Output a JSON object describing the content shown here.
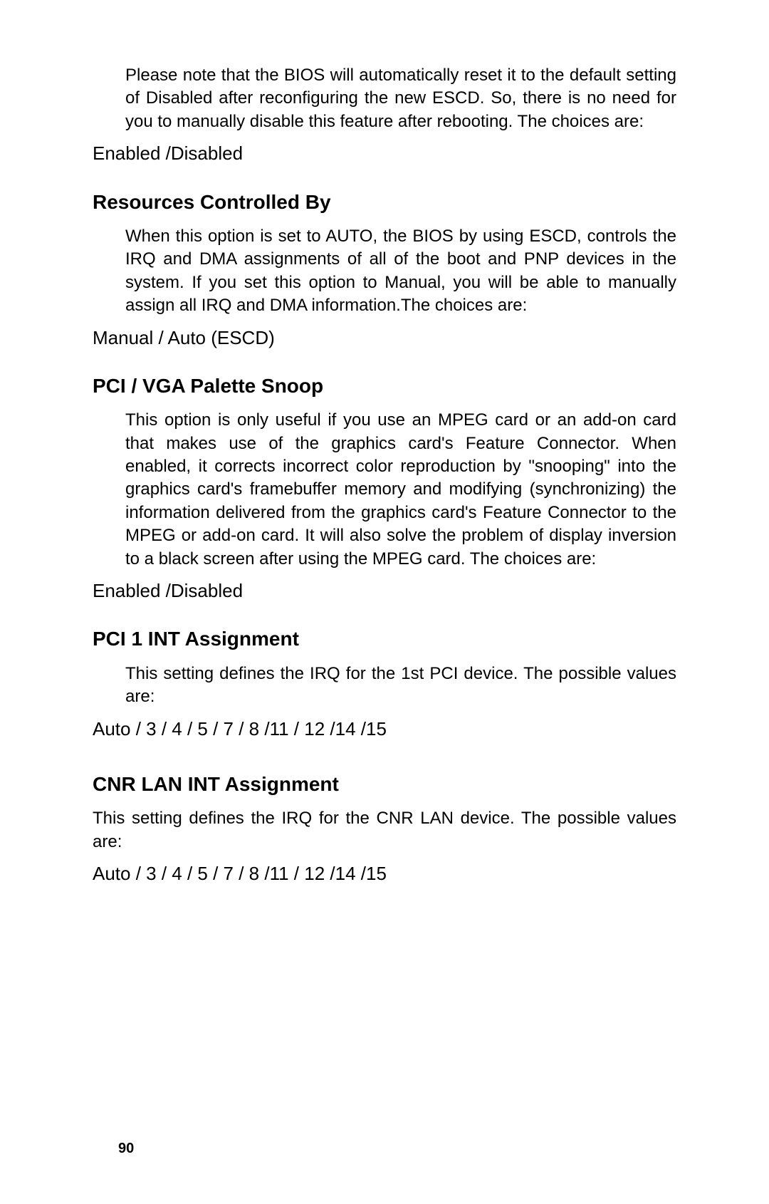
{
  "page": {
    "number": "90"
  },
  "intro": {
    "paragraph": "Please note that the BIOS will automatically reset it to the default setting of Disabled after reconfiguring the new ESCD. So, there is no need for you to manually disable this feature after rebooting. The choices are:",
    "options": "Enabled /Disabled"
  },
  "sections": [
    {
      "heading": "Resources Controlled By",
      "paragraph": "When this option is set to AUTO, the BIOS by using ESCD, controls the IRQ and DMA assignments of all of the boot and PNP devices in the system. If you set this option to Manual, you will be able to manually assign all IRQ and DMA information.The choices are:",
      "paragraph_indented": true,
      "options": "Manual / Auto (ESCD)",
      "extra_gap": false
    },
    {
      "heading": "PCI / VGA Palette Snoop",
      "paragraph": "This option is only useful if you use an MPEG card or an add-on card that makes use of the graphics card's Feature Connector. When enabled, it corrects incorrect color reproduction by \"snooping\" into the graphics card's framebuffer memory and modifying (synchronizing) the information delivered from the graphics card's Feature Connector to the MPEG or add-on card. It will also solve the problem of display inversion to a black screen after using the MPEG card. The choices are:",
      "paragraph_indented": true,
      "options": "Enabled /Disabled",
      "extra_gap": false
    },
    {
      "heading": "PCI 1 INT Assignment",
      "paragraph": "This setting defines the IRQ for the 1st PCI device. The possible values are:",
      "paragraph_indented": true,
      "options": "Auto / 3 / 4 / 5 / 7 / 8 /11 / 12 /14 /15",
      "extra_gap": false
    },
    {
      "heading": "CNR LAN INT Assignment",
      "paragraph": "This setting defines the IRQ for the CNR LAN device. The possible values are:",
      "paragraph_indented": false,
      "options": "Auto / 3 / 4 / 5 / 7 / 8 /11 / 12 /14 /15",
      "extra_gap": true
    }
  ]
}
